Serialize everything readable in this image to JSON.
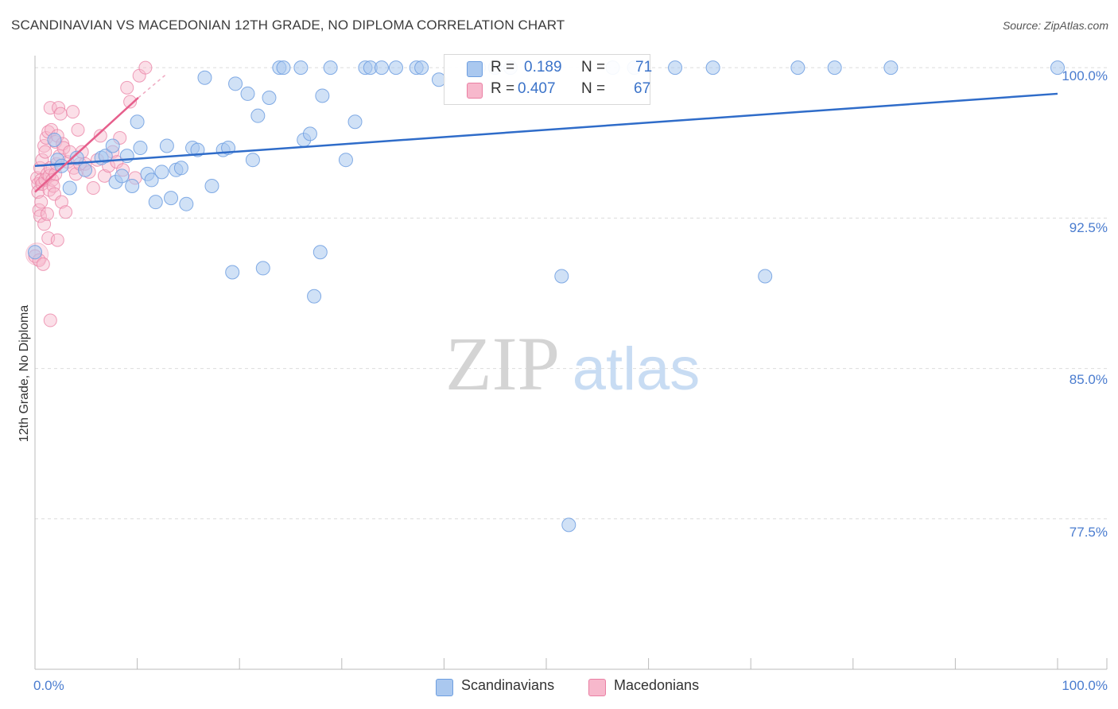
{
  "title": "SCANDINAVIAN VS MACEDONIAN 12TH GRADE, NO DIPLOMA CORRELATION CHART",
  "source": "Source: ZipAtlas.com",
  "watermark": {
    "zip": "ZIP",
    "atlas": "atlas"
  },
  "legend": {
    "r_label": "R =",
    "n_label": "N =",
    "rows": [
      {
        "name": "Scandinavians",
        "r": "0.189",
        "n": "71",
        "fill": "#aac8ef",
        "stroke": "#6d9ee0"
      },
      {
        "name": "Macedonians",
        "r": "0.407",
        "n": "67",
        "fill": "#f7b8cc",
        "stroke": "#ea7fa3"
      }
    ]
  },
  "chart_data": {
    "type": "scatter",
    "title": "SCANDINAVIAN VS MACEDONIAN 12TH GRADE, NO DIPLOMA CORRELATION CHART",
    "xlabel": "",
    "ylabel": "12th Grade, No Diploma",
    "xlim": [
      0,
      100
    ],
    "ylim": [
      70.0,
      100.6
    ],
    "x_tick_labels": [
      "0.0%",
      "100.0%"
    ],
    "y_ticks": [
      {
        "value": 100.0,
        "label": "100.0%"
      },
      {
        "value": 92.5,
        "label": "92.5%"
      },
      {
        "value": 85.0,
        "label": "85.0%"
      },
      {
        "value": 77.5,
        "label": "77.5%"
      }
    ],
    "series": [
      {
        "name": "Scandinavians",
        "color": "#6d9ee0",
        "fill": "#aac8ef",
        "trend": {
          "x": [
            0,
            100
          ],
          "y": [
            95.1,
            98.7
          ],
          "dashed_extension": false
        },
        "points": [
          [
            0.0,
            90.8
          ],
          [
            1.9,
            96.4
          ],
          [
            2.2,
            95.4
          ],
          [
            2.6,
            95.1
          ],
          [
            3.4,
            94.0
          ],
          [
            4.1,
            95.5
          ],
          [
            4.9,
            94.9
          ],
          [
            6.5,
            95.5
          ],
          [
            6.9,
            95.6
          ],
          [
            7.6,
            96.1
          ],
          [
            7.9,
            94.3
          ],
          [
            8.5,
            94.6
          ],
          [
            9.0,
            95.6
          ],
          [
            9.5,
            94.1
          ],
          [
            10.0,
            97.3
          ],
          [
            10.3,
            96.0
          ],
          [
            11.0,
            94.7
          ],
          [
            11.4,
            94.4
          ],
          [
            11.8,
            93.3
          ],
          [
            12.4,
            94.8
          ],
          [
            12.9,
            96.1
          ],
          [
            13.3,
            93.5
          ],
          [
            13.8,
            94.9
          ],
          [
            14.3,
            95.0
          ],
          [
            14.8,
            93.2
          ],
          [
            15.4,
            96.0
          ],
          [
            15.9,
            95.9
          ],
          [
            16.6,
            99.5
          ],
          [
            17.3,
            94.1
          ],
          [
            18.4,
            95.9
          ],
          [
            18.9,
            96.0
          ],
          [
            19.3,
            89.8
          ],
          [
            19.6,
            99.2
          ],
          [
            20.8,
            98.7
          ],
          [
            21.3,
            95.4
          ],
          [
            21.8,
            97.6
          ],
          [
            22.3,
            90.0
          ],
          [
            22.9,
            98.5
          ],
          [
            23.9,
            100.0
          ],
          [
            24.3,
            100.0
          ],
          [
            26.0,
            100.0
          ],
          [
            26.3,
            96.4
          ],
          [
            26.9,
            96.7
          ],
          [
            27.3,
            88.6
          ],
          [
            27.9,
            90.8
          ],
          [
            28.1,
            98.6
          ],
          [
            28.9,
            100.0
          ],
          [
            30.4,
            95.4
          ],
          [
            31.3,
            97.3
          ],
          [
            32.3,
            100.0
          ],
          [
            32.8,
            100.0
          ],
          [
            33.9,
            100.0
          ],
          [
            35.3,
            100.0
          ],
          [
            37.3,
            100.0
          ],
          [
            37.8,
            100.0
          ],
          [
            39.5,
            99.4
          ],
          [
            43.0,
            100.0
          ],
          [
            43.4,
            100.0
          ],
          [
            45.0,
            100.0
          ],
          [
            46.5,
            100.0
          ],
          [
            51.5,
            89.6
          ],
          [
            52.2,
            77.2
          ],
          [
            56.5,
            100.0
          ],
          [
            58.6,
            100.0
          ],
          [
            62.6,
            100.0
          ],
          [
            66.3,
            100.0
          ],
          [
            71.4,
            89.6
          ],
          [
            74.6,
            100.0
          ],
          [
            78.2,
            100.0
          ],
          [
            83.7,
            100.0
          ],
          [
            100.0,
            100.0
          ]
        ]
      },
      {
        "name": "Macedonians",
        "color": "#ea7fa3",
        "fill": "#f7b8cc",
        "trend": {
          "x": [
            0,
            10.1
          ],
          "y": [
            93.8,
            98.5
          ],
          "dashed_to": [
            12.9,
            99.7
          ]
        },
        "points": [
          [
            0.0,
            90.6
          ],
          [
            0.2,
            94.5
          ],
          [
            0.3,
            94.2
          ],
          [
            0.3,
            93.8
          ],
          [
            0.4,
            92.9
          ],
          [
            0.4,
            90.4
          ],
          [
            0.5,
            95.0
          ],
          [
            0.5,
            92.6
          ],
          [
            0.6,
            94.4
          ],
          [
            0.6,
            93.3
          ],
          [
            0.7,
            95.4
          ],
          [
            0.7,
            94.2
          ],
          [
            0.8,
            90.2
          ],
          [
            0.9,
            96.1
          ],
          [
            0.9,
            92.2
          ],
          [
            1.0,
            95.8
          ],
          [
            1.0,
            94.4
          ],
          [
            1.1,
            96.5
          ],
          [
            1.2,
            94.7
          ],
          [
            1.2,
            92.7
          ],
          [
            1.3,
            91.5
          ],
          [
            1.3,
            96.8
          ],
          [
            1.4,
            94.6
          ],
          [
            1.4,
            93.9
          ],
          [
            1.5,
            95.0
          ],
          [
            1.5,
            98.0
          ],
          [
            1.5,
            87.4
          ],
          [
            1.6,
            96.9
          ],
          [
            1.7,
            94.4
          ],
          [
            1.8,
            94.1
          ],
          [
            1.9,
            93.7
          ],
          [
            2.0,
            94.7
          ],
          [
            2.0,
            96.3
          ],
          [
            2.1,
            95.2
          ],
          [
            2.2,
            96.6
          ],
          [
            2.2,
            91.4
          ],
          [
            2.3,
            98.0
          ],
          [
            2.4,
            95.6
          ],
          [
            2.5,
            97.7
          ],
          [
            2.6,
            93.3
          ],
          [
            2.7,
            96.2
          ],
          [
            2.8,
            96.0
          ],
          [
            3.0,
            92.8
          ],
          [
            3.2,
            95.3
          ],
          [
            3.4,
            95.8
          ],
          [
            3.7,
            97.8
          ],
          [
            3.8,
            95.0
          ],
          [
            4.0,
            94.7
          ],
          [
            4.2,
            96.9
          ],
          [
            4.4,
            95.2
          ],
          [
            4.6,
            95.8
          ],
          [
            4.9,
            95.2
          ],
          [
            5.3,
            94.8
          ],
          [
            5.7,
            94.0
          ],
          [
            6.1,
            95.4
          ],
          [
            6.4,
            96.6
          ],
          [
            6.8,
            94.6
          ],
          [
            7.2,
            95.1
          ],
          [
            7.6,
            95.8
          ],
          [
            8.0,
            95.3
          ],
          [
            8.3,
            96.5
          ],
          [
            8.6,
            94.9
          ],
          [
            9.0,
            99.0
          ],
          [
            9.3,
            98.3
          ],
          [
            9.8,
            94.5
          ],
          [
            10.2,
            99.6
          ],
          [
            10.8,
            100.0
          ]
        ]
      }
    ]
  }
}
